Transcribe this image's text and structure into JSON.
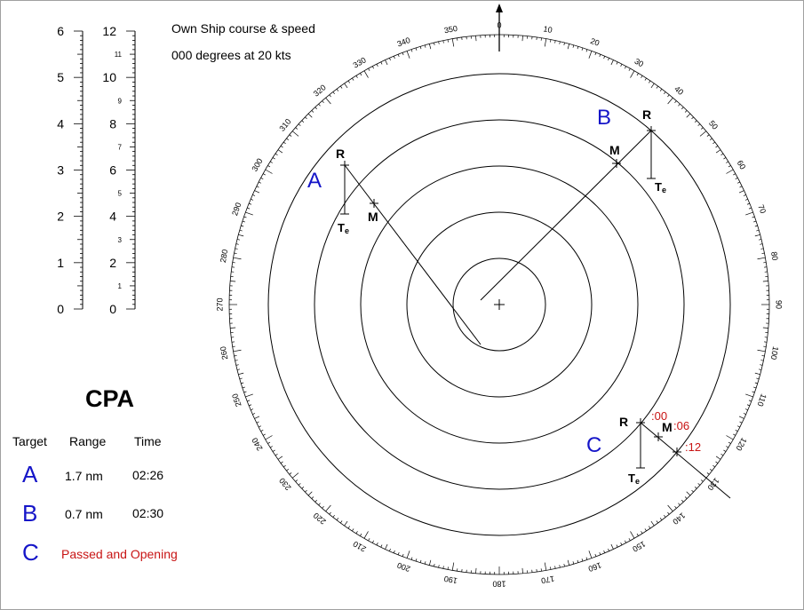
{
  "own_ship": {
    "title": "Own  Ship course & speed",
    "value": "000 degrees at 20 kts"
  },
  "scale_left": {
    "labels": [
      "0",
      "1",
      "2",
      "3",
      "4",
      "5",
      "6"
    ]
  },
  "scale_right": {
    "major_labels": [
      "0",
      "2",
      "4",
      "6",
      "8",
      "10",
      "12"
    ],
    "minor_labels": [
      "1",
      "3",
      "5",
      "7",
      "9",
      "11"
    ]
  },
  "cpa": {
    "title": "CPA",
    "headers": {
      "target": "Target",
      "range": "Range",
      "time": "Time"
    },
    "rows": [
      {
        "target": "A",
        "range": "1.7 nm",
        "time": "02:26"
      },
      {
        "target": "B",
        "range": "0.7 nm",
        "time": "02:30"
      },
      {
        "target": "C",
        "status": "Passed and Opening"
      }
    ]
  },
  "plot": {
    "bearing_labels": [
      "0",
      "10",
      "20",
      "30",
      "40",
      "50",
      "60",
      "70",
      "80",
      "90",
      "100",
      "110",
      "120",
      "130",
      "140",
      "150",
      "160",
      "170",
      "180",
      "190",
      "200",
      "210",
      "220",
      "230",
      "240",
      "250",
      "260",
      "270",
      "280",
      "290",
      "300",
      "310",
      "320",
      "330",
      "340",
      "350"
    ],
    "targets": {
      "A": {
        "name": "A",
        "r": "R",
        "m": "M",
        "te": "T",
        "te_sub": "e"
      },
      "B": {
        "name": "B",
        "r": "R",
        "m": "M",
        "te": "T",
        "te_sub": "e"
      },
      "C": {
        "name": "C",
        "r": "R",
        "m": "M",
        "te": "T",
        "te_sub": "e",
        "times": [
          ":00",
          ":06",
          ":12"
        ]
      }
    }
  },
  "colors": {
    "target_blue": "#1515c8",
    "time_red": "#c81414"
  }
}
